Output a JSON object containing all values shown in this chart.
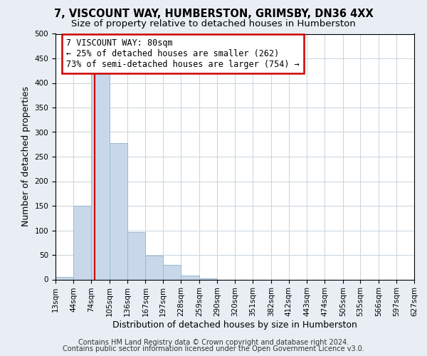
{
  "title": "7, VISCOUNT WAY, HUMBERSTON, GRIMSBY, DN36 4XX",
  "subtitle": "Size of property relative to detached houses in Humberston",
  "xlabel": "Distribution of detached houses by size in Humberston",
  "ylabel": "Number of detached properties",
  "bar_color": "#c8d8ea",
  "bar_edge_color": "#9ab8cc",
  "bin_edges": [
    13,
    44,
    74,
    105,
    136,
    167,
    197,
    228,
    259,
    290,
    320,
    351,
    382,
    412,
    443,
    474,
    505,
    535,
    566,
    597,
    627
  ],
  "bar_heights": [
    5,
    150,
    420,
    278,
    96,
    48,
    30,
    8,
    2,
    0,
    0,
    0,
    0,
    0,
    0,
    0,
    0,
    0,
    0,
    0
  ],
  "property_line_x": 80,
  "property_line_color": "#cc0000",
  "ylim": [
    0,
    500
  ],
  "yticks": [
    0,
    50,
    100,
    150,
    200,
    250,
    300,
    350,
    400,
    450,
    500
  ],
  "annotation_title": "7 VISCOUNT WAY: 80sqm",
  "annotation_line1": "← 25% of detached houses are smaller (262)",
  "annotation_line2": "73% of semi-detached houses are larger (754) →",
  "annotation_box_color": "#ffffff",
  "annotation_box_edge": "#cc0000",
  "footnote1": "Contains HM Land Registry data © Crown copyright and database right 2024.",
  "footnote2": "Contains public sector information licensed under the Open Government Licence v3.0.",
  "background_color": "#e8eef4",
  "plot_background_color": "#ffffff",
  "grid_color": "#c8d4dc",
  "title_fontsize": 10.5,
  "subtitle_fontsize": 9.5,
  "tick_label_fontsize": 7.5,
  "axis_label_fontsize": 9,
  "footnote_fontsize": 7
}
